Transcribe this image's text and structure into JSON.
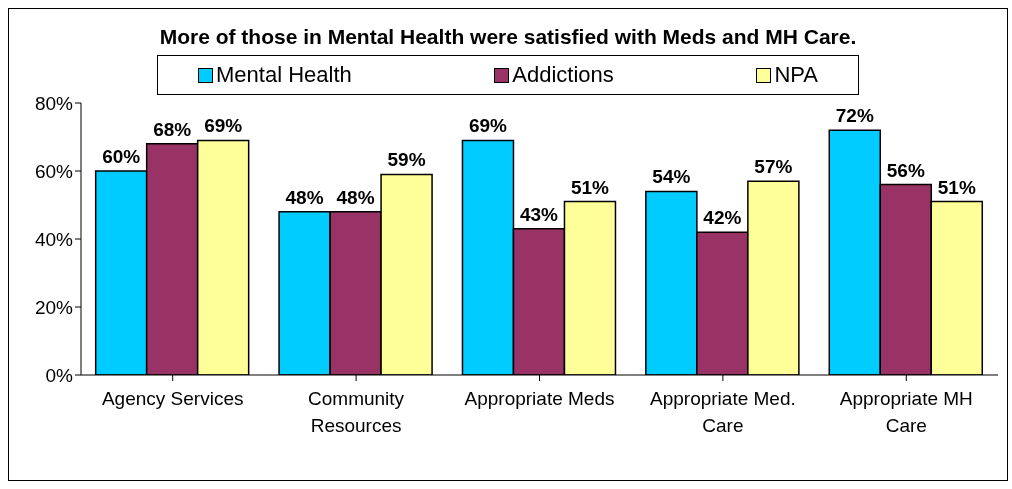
{
  "chart_data": {
    "type": "bar",
    "title": "More of those in Mental Health were satisfied with Meds and MH Care.",
    "categories": [
      "Agency Services",
      "Community Resources",
      "Appropriate Meds",
      "Appropriate Med. Care",
      "Appropriate MH Care"
    ],
    "series": [
      {
        "name": "Mental Health",
        "color": "#00ccff",
        "values": [
          60,
          48,
          69,
          54,
          72
        ],
        "value_labels": [
          "60%",
          "48%",
          "69%",
          "54%",
          "72%"
        ]
      },
      {
        "name": "Addictions",
        "color": "#993366",
        "values": [
          68,
          48,
          43,
          42,
          56
        ],
        "value_labels": [
          "68%",
          "48%",
          "43%",
          "42%",
          "56%"
        ]
      },
      {
        "name": "NPA",
        "color": "#ffff99",
        "values": [
          69,
          59,
          51,
          57,
          51
        ],
        "value_labels": [
          "69%",
          "59%",
          "51%",
          "57%",
          "51%"
        ]
      }
    ],
    "ylim": [
      0,
      80
    ],
    "yticks": [
      {
        "value": 0,
        "label": "0%"
      },
      {
        "value": 20,
        "label": "20%"
      },
      {
        "value": 40,
        "label": "40%"
      },
      {
        "value": 60,
        "label": "60%"
      },
      {
        "value": 80,
        "label": "80%"
      }
    ],
    "grid": false,
    "legend": "top"
  }
}
